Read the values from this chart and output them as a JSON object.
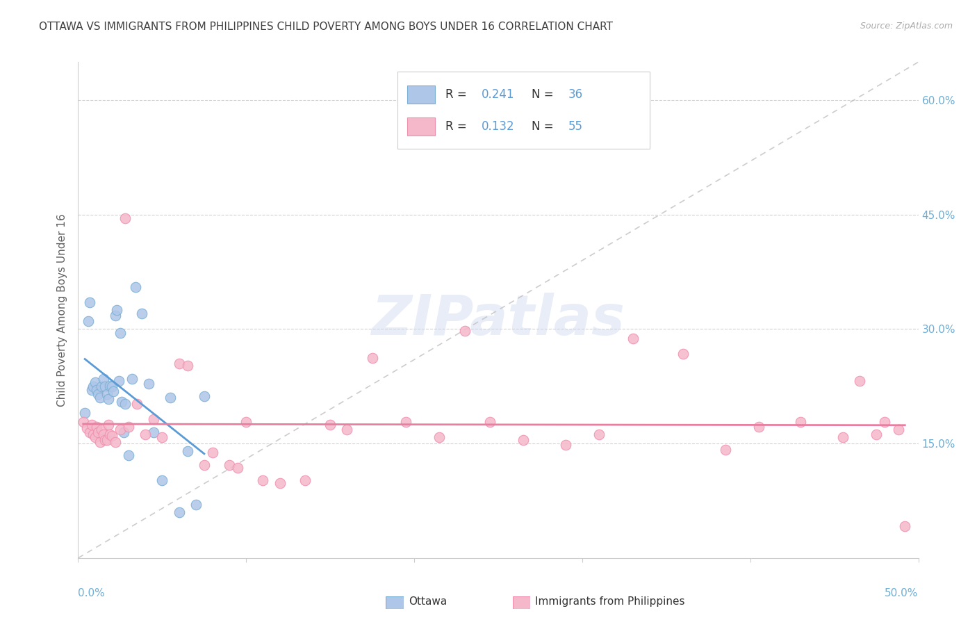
{
  "title": "OTTAWA VS IMMIGRANTS FROM PHILIPPINES CHILD POVERTY AMONG BOYS UNDER 16 CORRELATION CHART",
  "source": "Source: ZipAtlas.com",
  "ylabel": "Child Poverty Among Boys Under 16",
  "ytick_labels": [
    "15.0%",
    "30.0%",
    "45.0%",
    "60.0%"
  ],
  "ytick_values": [
    0.15,
    0.3,
    0.45,
    0.6
  ],
  "xlim": [
    0.0,
    0.5
  ],
  "ylim": [
    0.0,
    0.65
  ],
  "watermark": "ZIPatlas",
  "ottawa_color": "#aec6e8",
  "ottawa_edge_color": "#7aafd4",
  "ottawa_line_color": "#5b9bd5",
  "philippines_color": "#f5b8cb",
  "philippines_edge_color": "#ef8fae",
  "philippines_line_color": "#e87fa0",
  "grid_color": "#cccccc",
  "diag_color": "#c0c0c0",
  "background_color": "#ffffff",
  "title_color": "#404040",
  "source_color": "#aaaaaa",
  "ylabel_color": "#606060",
  "right_tick_color": "#6baed6",
  "bottom_tick_color": "#6baed6",
  "legend_R_color": "#5b9bd5",
  "legend_N_color": "#5b9bd5",
  "legend_text_color": "#333333",
  "ottawa_scatter_x": [
    0.004,
    0.006,
    0.007,
    0.008,
    0.009,
    0.01,
    0.011,
    0.012,
    0.013,
    0.014,
    0.015,
    0.016,
    0.017,
    0.018,
    0.019,
    0.02,
    0.021,
    0.022,
    0.023,
    0.024,
    0.025,
    0.026,
    0.027,
    0.028,
    0.03,
    0.032,
    0.034,
    0.038,
    0.042,
    0.045,
    0.05,
    0.055,
    0.06,
    0.065,
    0.07,
    0.075
  ],
  "ottawa_scatter_y": [
    0.19,
    0.31,
    0.335,
    0.22,
    0.225,
    0.23,
    0.22,
    0.215,
    0.21,
    0.225,
    0.235,
    0.225,
    0.215,
    0.208,
    0.226,
    0.225,
    0.218,
    0.318,
    0.325,
    0.232,
    0.295,
    0.205,
    0.165,
    0.202,
    0.135,
    0.235,
    0.355,
    0.32,
    0.228,
    0.165,
    0.102,
    0.21,
    0.06,
    0.14,
    0.07,
    0.212
  ],
  "philippines_scatter_x": [
    0.003,
    0.005,
    0.007,
    0.008,
    0.009,
    0.01,
    0.011,
    0.012,
    0.013,
    0.014,
    0.015,
    0.016,
    0.017,
    0.018,
    0.019,
    0.02,
    0.022,
    0.025,
    0.028,
    0.03,
    0.035,
    0.04,
    0.045,
    0.05,
    0.06,
    0.065,
    0.075,
    0.08,
    0.09,
    0.095,
    0.1,
    0.11,
    0.12,
    0.135,
    0.15,
    0.16,
    0.175,
    0.195,
    0.215,
    0.23,
    0.245,
    0.265,
    0.29,
    0.31,
    0.33,
    0.36,
    0.385,
    0.405,
    0.43,
    0.455,
    0.465,
    0.475,
    0.48,
    0.488,
    0.492
  ],
  "philippines_scatter_y": [
    0.178,
    0.17,
    0.165,
    0.175,
    0.162,
    0.158,
    0.172,
    0.165,
    0.152,
    0.168,
    0.162,
    0.155,
    0.155,
    0.175,
    0.162,
    0.16,
    0.152,
    0.168,
    0.445,
    0.172,
    0.202,
    0.162,
    0.182,
    0.158,
    0.255,
    0.252,
    0.122,
    0.138,
    0.122,
    0.118,
    0.178,
    0.102,
    0.098,
    0.102,
    0.175,
    0.168,
    0.262,
    0.178,
    0.158,
    0.298,
    0.178,
    0.155,
    0.148,
    0.162,
    0.288,
    0.268,
    0.142,
    0.172,
    0.178,
    0.158,
    0.232,
    0.162,
    0.178,
    0.168,
    0.042
  ],
  "legend_R1": "0.241",
  "legend_N1": "36",
  "legend_R2": "0.132",
  "legend_N2": "55"
}
